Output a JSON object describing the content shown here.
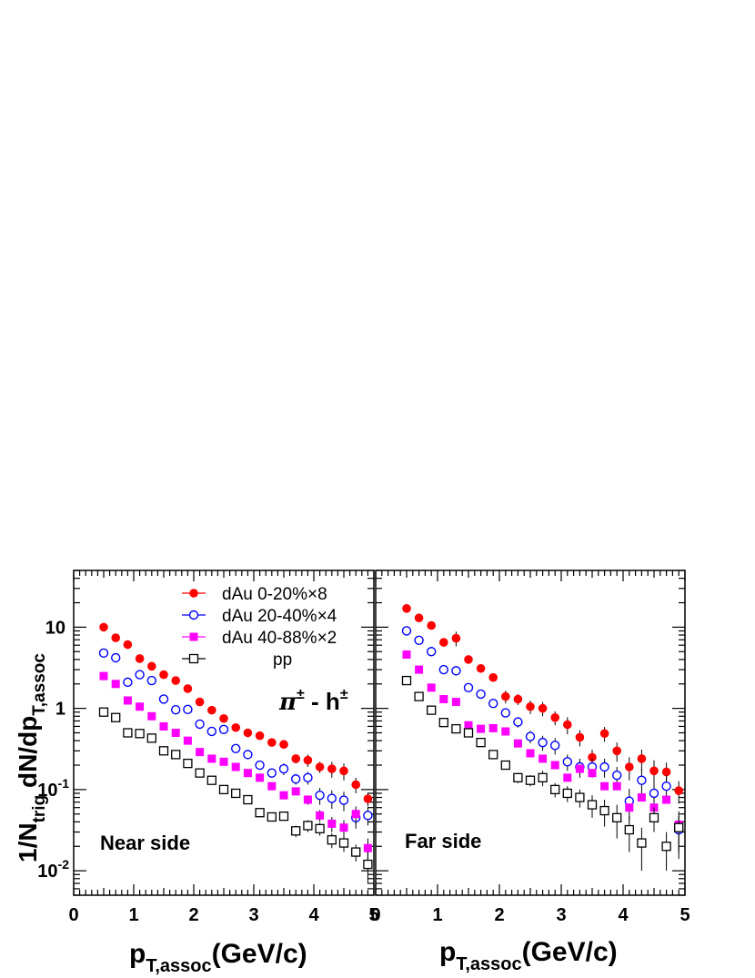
{
  "chart_data": {
    "type": "scatter",
    "yscale": "log",
    "grid": false,
    "ylim": [
      0.005,
      50
    ],
    "xlim": [
      0,
      5
    ],
    "y_ticks": [
      {
        "value": 0.01,
        "base": "10",
        "exp": "-2"
      },
      {
        "value": 0.1,
        "base": "10",
        "exp": "-1"
      },
      {
        "value": 1,
        "base": "1",
        "exp": ""
      },
      {
        "value": 10,
        "base": "10",
        "exp": ""
      }
    ],
    "x_ticks": [
      "0",
      "1",
      "2",
      "3",
      "4",
      "5"
    ],
    "ylabel": {
      "main": "1/N",
      "sub1": "trig",
      "mid": " dN/dp",
      "sub2": "T,assoc"
    },
    "xlabel": {
      "main": "p",
      "sub": "T,assoc",
      "tail": "(GeV/c)"
    },
    "annotation": {
      "main": "π",
      "sup1": "±",
      "mid": " - h",
      "sup2": "±"
    },
    "legend_position": "top-right of left panel",
    "legend": [
      {
        "series": 0,
        "label": "dAu  0-20%×8"
      },
      {
        "series": 1,
        "label": "dAu 20-40%×4"
      },
      {
        "series": 2,
        "label": "dAu 40-88%×2"
      },
      {
        "series": 3,
        "label": "pp"
      }
    ],
    "series_styles": [
      {
        "marker": "filled-circle",
        "color": "#ff0000"
      },
      {
        "marker": "open-circle",
        "color": "#0000ff"
      },
      {
        "marker": "filled-square",
        "color": "#ff00ff"
      },
      {
        "marker": "open-square",
        "color": "#000000"
      }
    ],
    "panels": [
      {
        "label": "Near side",
        "series": [
          {
            "values": [
              [
                0.5,
                10,
                0
              ],
              [
                0.7,
                7.4,
                0
              ],
              [
                0.9,
                6.1,
                0
              ],
              [
                1.1,
                4.1,
                0
              ],
              [
                1.3,
                3.3,
                0
              ],
              [
                1.5,
                2.6,
                0
              ],
              [
                1.7,
                2.2,
                0
              ],
              [
                1.9,
                1.75,
                0
              ],
              [
                2.1,
                1.2,
                0
              ],
              [
                2.3,
                0.95,
                0
              ],
              [
                2.5,
                0.75,
                0
              ],
              [
                2.7,
                0.58,
                0
              ],
              [
                2.9,
                0.5,
                0
              ],
              [
                3.1,
                0.46,
                0
              ],
              [
                3.3,
                0.38,
                0
              ],
              [
                3.5,
                0.36,
                0
              ],
              [
                3.7,
                0.24,
                0.03
              ],
              [
                3.9,
                0.23,
                0.04
              ],
              [
                4.1,
                0.19,
                0.03
              ],
              [
                4.3,
                0.18,
                0.04
              ],
              [
                4.5,
                0.17,
                0.04
              ],
              [
                4.7,
                0.115,
                0.025
              ],
              [
                4.9,
                0.077,
                0.015
              ]
            ]
          },
          {
            "values": [
              [
                0.5,
                4.8,
                0
              ],
              [
                0.7,
                4.2,
                0
              ],
              [
                0.9,
                2.1,
                0
              ],
              [
                1.1,
                2.6,
                0
              ],
              [
                1.3,
                2.2,
                0
              ],
              [
                1.5,
                1.3,
                0
              ],
              [
                1.7,
                0.96,
                0
              ],
              [
                1.9,
                0.97,
                0
              ],
              [
                2.1,
                0.64,
                0
              ],
              [
                2.3,
                0.52,
                0
              ],
              [
                2.5,
                0.55,
                0
              ],
              [
                2.7,
                0.32,
                0
              ],
              [
                2.9,
                0.27,
                0
              ],
              [
                3.1,
                0.2,
                0
              ],
              [
                3.3,
                0.16,
                0.02
              ],
              [
                3.5,
                0.18,
                0.03
              ],
              [
                3.7,
                0.135,
                0.02
              ],
              [
                3.9,
                0.14,
                0.025
              ],
              [
                4.1,
                0.085,
                0.02
              ],
              [
                4.3,
                0.078,
                0.02
              ],
              [
                4.5,
                0.074,
                0.02
              ],
              [
                4.7,
                0.045,
                0.012
              ],
              [
                4.9,
                0.048,
                0.012
              ]
            ]
          },
          {
            "values": [
              [
                0.5,
                2.5,
                0
              ],
              [
                0.7,
                2.0,
                0
              ],
              [
                0.9,
                1.25,
                0
              ],
              [
                1.1,
                1.05,
                0
              ],
              [
                1.3,
                0.8,
                0
              ],
              [
                1.5,
                0.6,
                0
              ],
              [
                1.7,
                0.5,
                0
              ],
              [
                1.9,
                0.4,
                0
              ],
              [
                2.1,
                0.29,
                0
              ],
              [
                2.3,
                0.24,
                0
              ],
              [
                2.5,
                0.22,
                0
              ],
              [
                2.7,
                0.19,
                0
              ],
              [
                2.9,
                0.16,
                0
              ],
              [
                3.1,
                0.14,
                0
              ],
              [
                3.3,
                0.11,
                0
              ],
              [
                3.5,
                0.085,
                0
              ],
              [
                3.7,
                0.095,
                0
              ],
              [
                3.9,
                0.075,
                0.01
              ],
              [
                4.1,
                0.048,
                0.008
              ],
              [
                4.3,
                0.038,
                0.008
              ],
              [
                4.5,
                0.034,
                0.008
              ],
              [
                4.7,
                0.05,
                0.012
              ],
              [
                4.9,
                0.019,
                0.006
              ]
            ]
          },
          {
            "values": [
              [
                0.5,
                0.9,
                0
              ],
              [
                0.7,
                0.77,
                0
              ],
              [
                0.9,
                0.5,
                0
              ],
              [
                1.1,
                0.49,
                0
              ],
              [
                1.3,
                0.43,
                0
              ],
              [
                1.5,
                0.3,
                0
              ],
              [
                1.7,
                0.27,
                0
              ],
              [
                1.9,
                0.21,
                0
              ],
              [
                2.1,
                0.16,
                0
              ],
              [
                2.3,
                0.13,
                0
              ],
              [
                2.5,
                0.1,
                0
              ],
              [
                2.7,
                0.09,
                0
              ],
              [
                2.9,
                0.075,
                0
              ],
              [
                3.1,
                0.052,
                0
              ],
              [
                3.3,
                0.046,
                0
              ],
              [
                3.5,
                0.047,
                0
              ],
              [
                3.7,
                0.031,
                0.005
              ],
              [
                3.9,
                0.036,
                0.006
              ],
              [
                4.1,
                0.033,
                0.006
              ],
              [
                4.3,
                0.024,
                0.005
              ],
              [
                4.5,
                0.022,
                0.005
              ],
              [
                4.7,
                0.017,
                0.004
              ],
              [
                4.9,
                0.012,
                0.005
              ]
            ]
          }
        ]
      },
      {
        "label": "Far side",
        "series": [
          {
            "values": [
              [
                0.5,
                17,
                0
              ],
              [
                0.7,
                13,
                0
              ],
              [
                0.9,
                10.5,
                0
              ],
              [
                1.1,
                6.5,
                0
              ],
              [
                1.3,
                7.3,
                1.5
              ],
              [
                1.5,
                4.0,
                0
              ],
              [
                1.7,
                3.1,
                0
              ],
              [
                1.9,
                2.4,
                0
              ],
              [
                2.1,
                1.4,
                0.25
              ],
              [
                2.3,
                1.3,
                0.2
              ],
              [
                2.5,
                1.05,
                0.2
              ],
              [
                2.7,
                1.0,
                0.2
              ],
              [
                2.9,
                0.77,
                0.15
              ],
              [
                3.1,
                0.63,
                0.15
              ],
              [
                3.3,
                0.44,
                0.1
              ],
              [
                3.5,
                0.25,
                0.06
              ],
              [
                3.7,
                0.49,
                0.1
              ],
              [
                3.9,
                0.3,
                0.08
              ],
              [
                4.1,
                0.19,
                0.06
              ],
              [
                4.3,
                0.24,
                0.07
              ],
              [
                4.5,
                0.17,
                0.06
              ],
              [
                4.7,
                0.165,
                0.05
              ],
              [
                4.9,
                0.097,
                0.03
              ]
            ]
          },
          {
            "values": [
              [
                0.5,
                9,
                0
              ],
              [
                0.7,
                6.9,
                0
              ],
              [
                0.9,
                5.0,
                0
              ],
              [
                1.1,
                3.0,
                0
              ],
              [
                1.3,
                2.9,
                0
              ],
              [
                1.5,
                1.8,
                0
              ],
              [
                1.7,
                1.5,
                0
              ],
              [
                1.9,
                1.15,
                0
              ],
              [
                2.1,
                0.88,
                0.1
              ],
              [
                2.3,
                0.68,
                0.1
              ],
              [
                2.5,
                0.45,
                0.08
              ],
              [
                2.7,
                0.38,
                0.08
              ],
              [
                2.9,
                0.35,
                0.08
              ],
              [
                3.1,
                0.22,
                0.05
              ],
              [
                3.3,
                0.19,
                0.05
              ],
              [
                3.5,
                0.19,
                0.05
              ],
              [
                3.7,
                0.19,
                0.05
              ],
              [
                3.9,
                0.15,
                0.04
              ],
              [
                4.1,
                0.072,
                0.03
              ],
              [
                4.3,
                0.13,
                0.05
              ],
              [
                4.5,
                0.09,
                0.04
              ],
              [
                4.7,
                0.11,
                0.04
              ],
              [
                4.9,
                0.032,
                0.015
              ]
            ]
          },
          {
            "values": [
              [
                0.5,
                4.6,
                0
              ],
              [
                0.7,
                3.0,
                0
              ],
              [
                0.9,
                1.8,
                0
              ],
              [
                1.1,
                1.3,
                0
              ],
              [
                1.3,
                1.2,
                0
              ],
              [
                1.5,
                0.62,
                0
              ],
              [
                1.7,
                0.56,
                0
              ],
              [
                1.9,
                0.57,
                0
              ],
              [
                2.1,
                0.52,
                0
              ],
              [
                2.3,
                0.37,
                0
              ],
              [
                2.5,
                0.28,
                0
              ],
              [
                2.7,
                0.24,
                0
              ],
              [
                2.9,
                0.2,
                0
              ],
              [
                3.1,
                0.14,
                0
              ],
              [
                3.3,
                0.18,
                0
              ],
              [
                3.5,
                0.16,
                0
              ],
              [
                3.7,
                0.11,
                0
              ],
              [
                3.9,
                0.11,
                0
              ],
              [
                4.1,
                0.06,
                0
              ],
              [
                4.3,
                0.08,
                0
              ],
              [
                4.5,
                0.06,
                0
              ],
              [
                4.7,
                0.075,
                0
              ],
              [
                4.9,
                0.037,
                0
              ]
            ]
          },
          {
            "values": [
              [
                0.5,
                2.2,
                0
              ],
              [
                0.7,
                1.4,
                0
              ],
              [
                0.9,
                0.95,
                0
              ],
              [
                1.1,
                0.67,
                0
              ],
              [
                1.3,
                0.56,
                0
              ],
              [
                1.5,
                0.5,
                0
              ],
              [
                1.7,
                0.38,
                0
              ],
              [
                1.9,
                0.27,
                0
              ],
              [
                2.1,
                0.2,
                0
              ],
              [
                2.3,
                0.14,
                0.02
              ],
              [
                2.5,
                0.13,
                0.02
              ],
              [
                2.7,
                0.14,
                0.03
              ],
              [
                2.9,
                0.1,
                0.02
              ],
              [
                3.1,
                0.09,
                0.02
              ],
              [
                3.3,
                0.08,
                0.02
              ],
              [
                3.5,
                0.065,
                0.02
              ],
              [
                3.7,
                0.055,
                0.02
              ],
              [
                3.9,
                0.045,
                0.02
              ],
              [
                4.1,
                0.032,
                0.015
              ],
              [
                4.3,
                0.022,
                0.012
              ],
              [
                4.5,
                0.045,
                0.015
              ],
              [
                4.7,
                0.02,
                0.01
              ],
              [
                4.9,
                0.034,
                0.02
              ]
            ]
          }
        ]
      }
    ]
  }
}
